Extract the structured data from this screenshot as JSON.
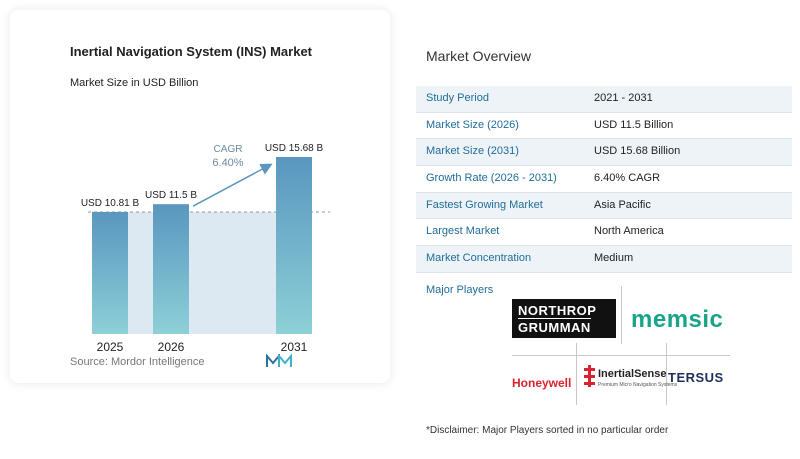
{
  "chart": {
    "title": "Inertial Navigation System (INS) Market",
    "subtitle": "Market Size in USD Billion",
    "source": "Source:  Mordor Intelligence",
    "cagr_label": "CAGR",
    "cagr_value": "6.40%"
  },
  "chart_data": {
    "type": "bar",
    "title": "Inertial Navigation System (INS) Market",
    "ylabel": "Market Size in USD Billion",
    "categories": [
      "2025",
      "2026",
      "2031"
    ],
    "values": [
      10.81,
      11.5,
      15.68
    ],
    "data_labels": [
      "USD 10.81 B",
      "USD 11.5 B",
      "USD 15.68 B"
    ],
    "cagr": "6.40%",
    "colors": {
      "bar_top": "#5a96bf",
      "bar_bottom": "#8dd0d6",
      "band": "#dce9f2",
      "arrow": "#5a96bf"
    }
  },
  "overview": {
    "title": "Market Overview",
    "rows": [
      {
        "label": "Study Period",
        "value": "2021 - 2031"
      },
      {
        "label": "Market Size (2026)",
        "value": "USD 11.5 Billion"
      },
      {
        "label": "Market Size (2031)",
        "value": "USD 15.68 Billion"
      },
      {
        "label": "Growth Rate (2026 - 2031)",
        "value": "6.40% CAGR"
      },
      {
        "label": "Fastest Growing Market",
        "value": "Asia Pacific"
      },
      {
        "label": "Largest Market",
        "value": "North America"
      },
      {
        "label": "Market Concentration",
        "value": "Medium"
      }
    ]
  },
  "players": {
    "title": "Major Players",
    "logos": {
      "northrop_line1": "NORTHROP",
      "northrop_line2": "GRUMMAN",
      "memsic": "memsic",
      "honeywell": "Honeywell",
      "inertialsense": "InertialSense",
      "inertialsense_tag": "Premium Micro Navigation Systems",
      "tersus": "TERSUS"
    }
  },
  "disclaimer": "*Disclaimer: Major Players sorted in no particular order"
}
